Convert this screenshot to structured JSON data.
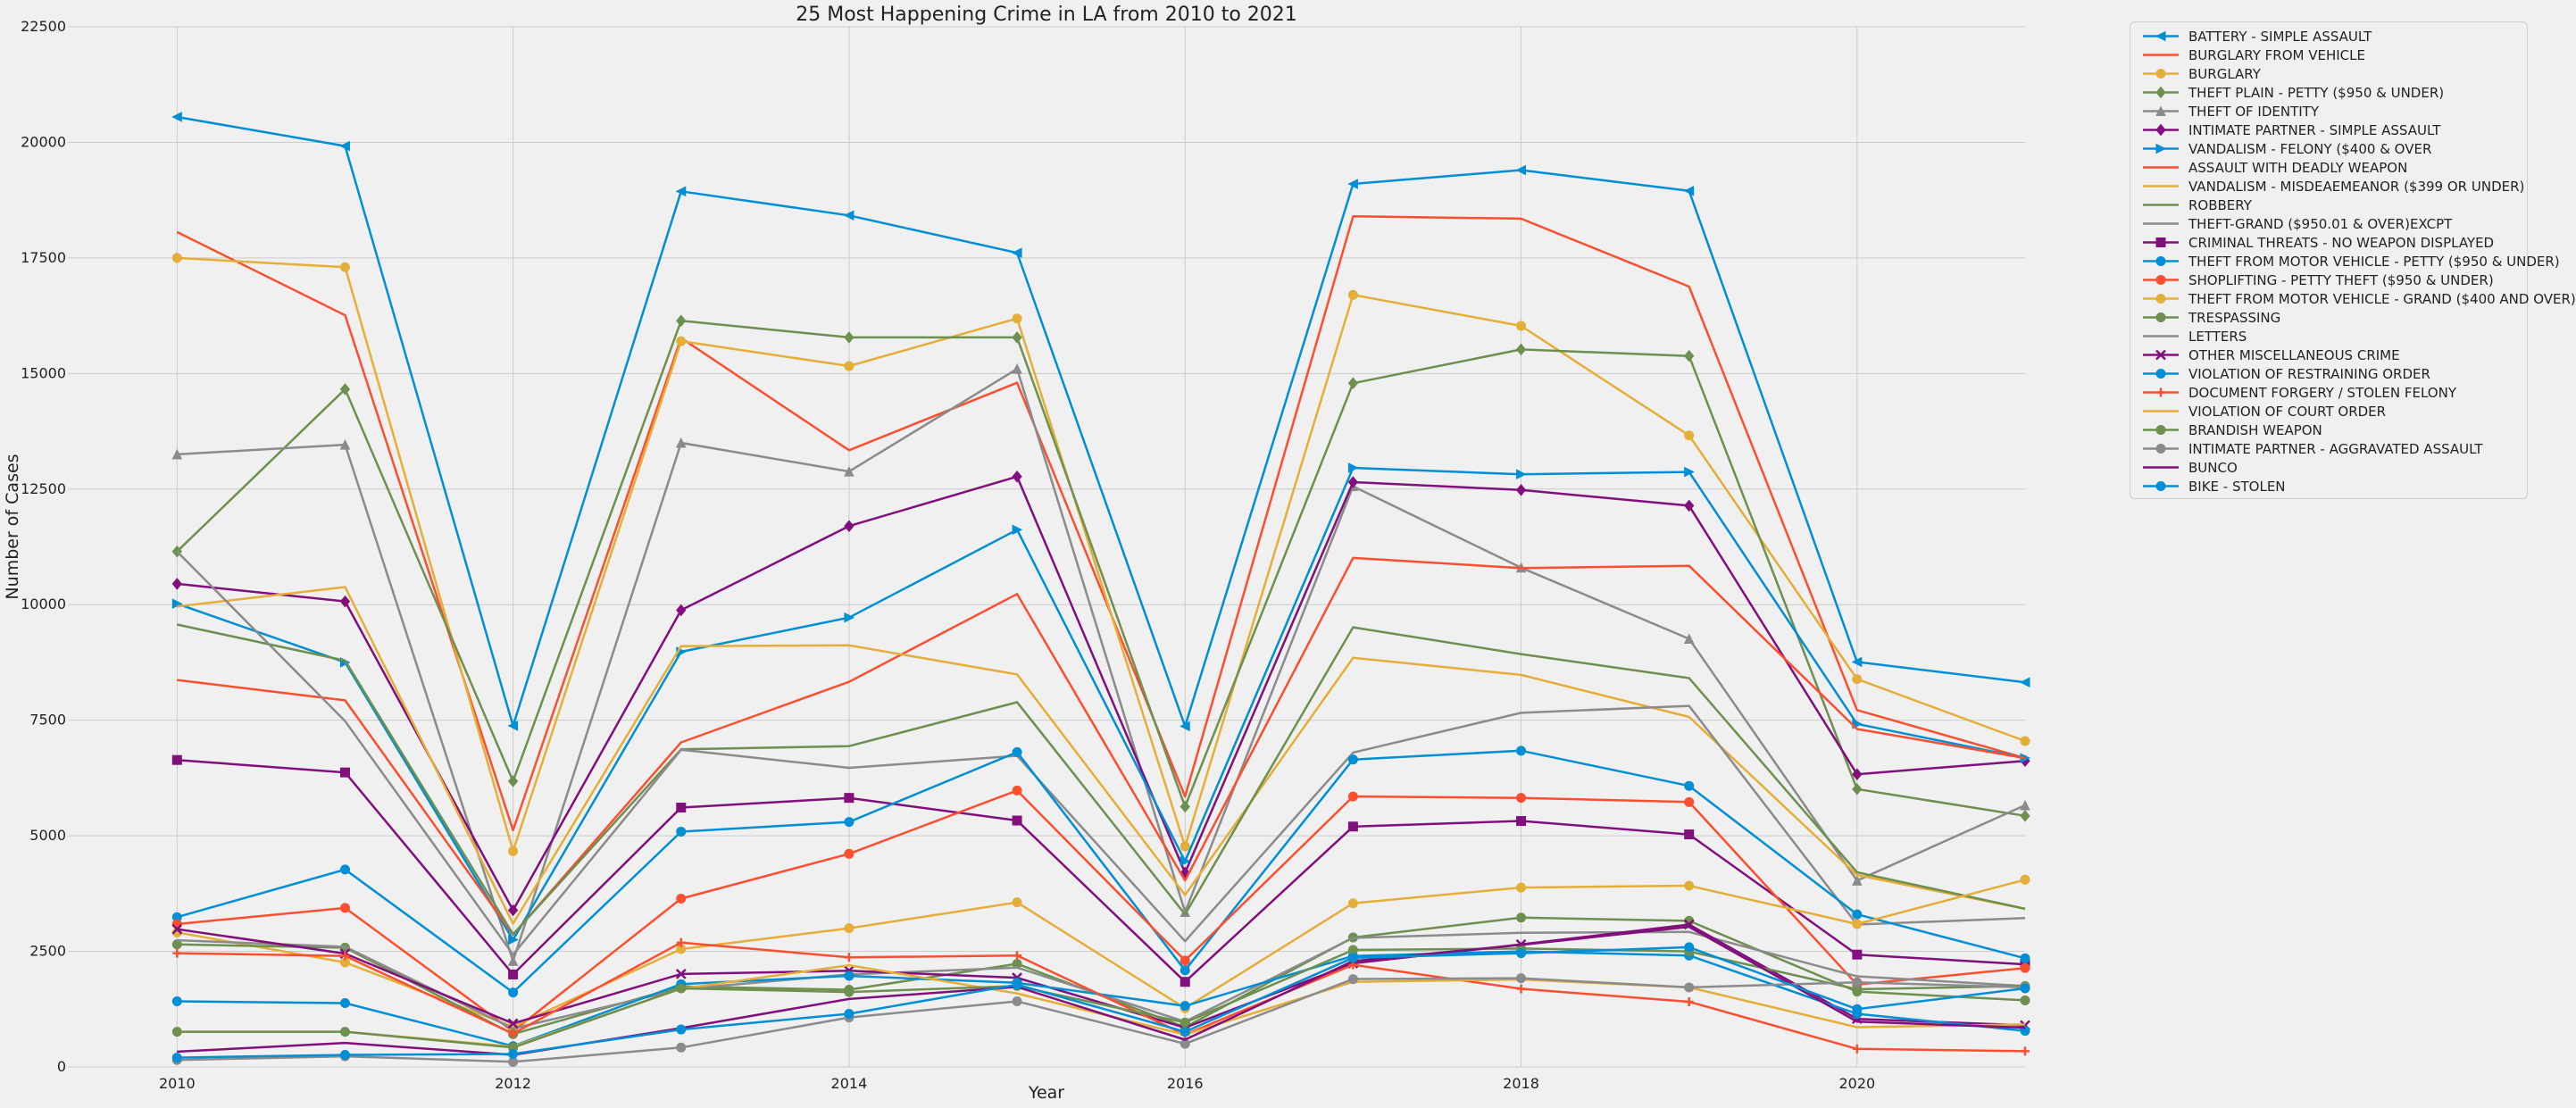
{
  "chart_data": {
    "type": "line",
    "title": "25 Most Happening Crime in LA from 2010 to 2021",
    "xlabel": "Year",
    "ylabel": "Number of Cases",
    "xlim": [
      2009.35,
      2021
    ],
    "ylim": [
      0,
      22500
    ],
    "x_ticks": [
      "2010",
      "2012",
      "2014",
      "2016",
      "2018",
      "2020"
    ],
    "y_ticks": [
      "0",
      "2500",
      "5000",
      "7500",
      "10000",
      "12500",
      "15000",
      "17500",
      "20000",
      "22500"
    ],
    "grid": true,
    "legend_position": "outside-right",
    "x": [
      2010,
      2011,
      2012,
      2013,
      2014,
      2015,
      2016,
      2017,
      2018,
      2019,
      2020,
      2021
    ],
    "series": [
      {
        "name": "BATTERY - SIMPLE ASSAULT",
        "color": "#008fd5",
        "marker": "triangle-left",
        "values": [
          20550,
          19920,
          7380,
          18940,
          18420,
          17610,
          7370,
          19100,
          19400,
          18950,
          8760,
          8320
        ]
      },
      {
        "name": "BURGLARY FROM VEHICLE",
        "color": "#fc4f30",
        "marker": "none",
        "values": [
          18060,
          16260,
          5120,
          15770,
          13340,
          14800,
          5850,
          18400,
          18350,
          16880,
          7720,
          6680
        ]
      },
      {
        "name": "BURGLARY",
        "color": "#e5ae38",
        "marker": "circle",
        "values": [
          17500,
          17300,
          4670,
          15700,
          15160,
          16190,
          4770,
          16700,
          16030,
          13660,
          8390,
          7050
        ]
      },
      {
        "name": "THEFT PLAIN - PETTY ($950 & UNDER)",
        "color": "#6d904f",
        "marker": "diamond",
        "values": [
          11150,
          14660,
          6180,
          16140,
          15780,
          15780,
          5630,
          14790,
          15520,
          15380,
          6010,
          5430
        ]
      },
      {
        "name": "THEFT OF IDENTITY",
        "color": "#8b8b8b",
        "marker": "triangle-up",
        "values": [
          13250,
          13460,
          2290,
          13500,
          12880,
          15100,
          3350,
          12560,
          10800,
          9260,
          4030,
          5660
        ]
      },
      {
        "name": "INTIMATE PARTNER - SIMPLE ASSAULT",
        "color": "#810f7c",
        "marker": "diamond",
        "values": [
          10450,
          10070,
          3390,
          9880,
          11700,
          12770,
          4200,
          12650,
          12480,
          12140,
          6330,
          6620
        ]
      },
      {
        "name": "VANDALISM - FELONY ($400 & OVER",
        "color": "#008fd5",
        "marker": "triangle-right",
        "values": [
          10020,
          8750,
          2750,
          8980,
          9720,
          11620,
          4450,
          12960,
          12820,
          12870,
          7420,
          6680
        ]
      },
      {
        "name": "ASSAULT WITH DEADLY WEAPON",
        "color": "#fc4f30",
        "marker": "none",
        "values": [
          8370,
          7930,
          2860,
          7020,
          8330,
          10230,
          4030,
          11010,
          10790,
          10840,
          7310,
          6680
        ]
      },
      {
        "name": "VANDALISM - MISDEAEMEANOR ($399 OR UNDER)",
        "color": "#e5ae38",
        "marker": "none",
        "values": [
          9960,
          10380,
          3100,
          9100,
          9120,
          8490,
          3720,
          8850,
          8480,
          7570,
          4150,
          3420
        ]
      },
      {
        "name": "ROBBERY",
        "color": "#6d904f",
        "marker": "none",
        "values": [
          9570,
          8790,
          2870,
          6870,
          6940,
          7890,
          3300,
          9510,
          8930,
          8410,
          4210,
          3420
        ]
      },
      {
        "name": "THEFT-GRAND ($950.01 & OVER)EXCPT",
        "color": "#8b8b8b",
        "marker": "none",
        "values": [
          11150,
          7480,
          2430,
          6860,
          6470,
          6730,
          2720,
          6800,
          7660,
          7810,
          3080,
          3220
        ]
      },
      {
        "name": "CRIMINAL THREATS - NO WEAPON DISPLAYED",
        "color": "#810f7c",
        "marker": "square",
        "values": [
          6640,
          6370,
          2000,
          5610,
          5820,
          5330,
          1840,
          5200,
          5320,
          5030,
          2430,
          2220
        ]
      },
      {
        "name": "THEFT FROM MOTOR VEHICLE - PETTY ($950 & UNDER)",
        "color": "#008fd5",
        "marker": "circle",
        "values": [
          3240,
          4270,
          1610,
          5090,
          5300,
          6810,
          2090,
          6650,
          6840,
          6080,
          3300,
          2350
        ]
      },
      {
        "name": "SHOPLIFTING - PETTY THEFT ($950 & UNDER)",
        "color": "#fc4f30",
        "marker": "circle",
        "values": [
          3090,
          3440,
          770,
          3640,
          4610,
          5980,
          2300,
          5850,
          5820,
          5730,
          1780,
          2140
        ]
      },
      {
        "name": "THEFT FROM MOTOR VEHICLE - GRAND ($400 AND OVER)",
        "color": "#e5ae38",
        "marker": "circle",
        "values": [
          2910,
          2260,
          870,
          2550,
          3000,
          3560,
          1270,
          3540,
          3880,
          3920,
          3090,
          4050
        ]
      },
      {
        "name": "TRESPASSING",
        "color": "#6d904f",
        "marker": "circle",
        "values": [
          2650,
          2580,
          710,
          1740,
          1670,
          2230,
          860,
          2800,
          3230,
          3160,
          1630,
          1440
        ]
      },
      {
        "name": "LETTERS",
        "color": "#8b8b8b",
        "marker": "none",
        "values": [
          2740,
          2600,
          830,
          1680,
          2000,
          2150,
          980,
          2790,
          2900,
          2920,
          1960,
          1750
        ]
      },
      {
        "name": "OTHER MISCELLANEOUS CRIME",
        "color": "#810f7c",
        "marker": "x",
        "values": [
          2980,
          2450,
          940,
          2010,
          2080,
          1930,
          850,
          2240,
          2650,
          3080,
          1040,
          900
        ]
      },
      {
        "name": "VIOLATION OF RESTRAINING ORDER",
        "color": "#008fd5",
        "marker": "circle",
        "values": [
          1420,
          1380,
          450,
          1790,
          1970,
          1820,
          1320,
          2400,
          2500,
          2410,
          1150,
          780
        ]
      },
      {
        "name": "DOCUMENT FORGERY / STOLEN FELONY",
        "color": "#fc4f30",
        "marker": "plus",
        "values": [
          2460,
          2400,
          720,
          2690,
          2370,
          2410,
          700,
          2210,
          1690,
          1410,
          390,
          340
        ]
      },
      {
        "name": "VIOLATION OF COURT ORDER",
        "color": "#e5ae38",
        "marker": "none",
        "values": [
          760,
          760,
          440,
          1690,
          2200,
          1590,
          700,
          1840,
          1890,
          1720,
          860,
          920
        ]
      },
      {
        "name": "BRANDISH WEAPON",
        "color": "#6d904f",
        "marker": "circle",
        "values": [
          760,
          760,
          420,
          1700,
          1620,
          1750,
          960,
          2530,
          2560,
          2500,
          1680,
          1750
        ]
      },
      {
        "name": "INTIMATE PARTNER - AGGRAVATED ASSAULT",
        "color": "#8b8b8b",
        "marker": "circle",
        "values": [
          150,
          230,
          110,
          420,
          1070,
          1420,
          500,
          1900,
          1920,
          1720,
          1830,
          1720
        ]
      },
      {
        "name": "BUNCO",
        "color": "#810f7c",
        "marker": "none",
        "values": [
          330,
          520,
          260,
          840,
          1470,
          1730,
          590,
          2290,
          2640,
          3030,
          980,
          850
        ]
      },
      {
        "name": "BIKE - STOLEN",
        "color": "#008fd5",
        "marker": "circle",
        "values": [
          200,
          260,
          280,
          810,
          1150,
          1780,
          760,
          2360,
          2460,
          2590,
          1250,
          1700
        ]
      }
    ]
  }
}
